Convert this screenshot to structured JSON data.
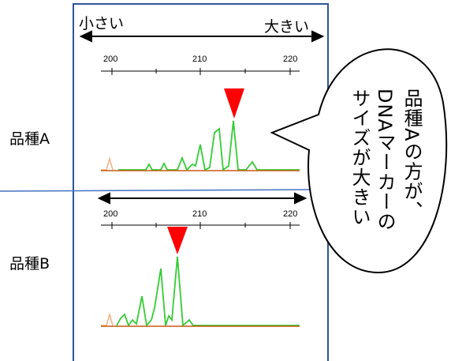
{
  "panel": {
    "scale_small": "小さい",
    "scale_large": "大きい"
  },
  "tracks": [
    {
      "label": "品種A",
      "ticks": [
        "200",
        "210",
        "220"
      ]
    },
    {
      "label": "品種B",
      "ticks": [
        "200",
        "210",
        "220"
      ]
    }
  ],
  "callout": {
    "lines": [
      "品種Aの方が、",
      "DNAマーカーの",
      "サイズが大きい"
    ]
  }
}
